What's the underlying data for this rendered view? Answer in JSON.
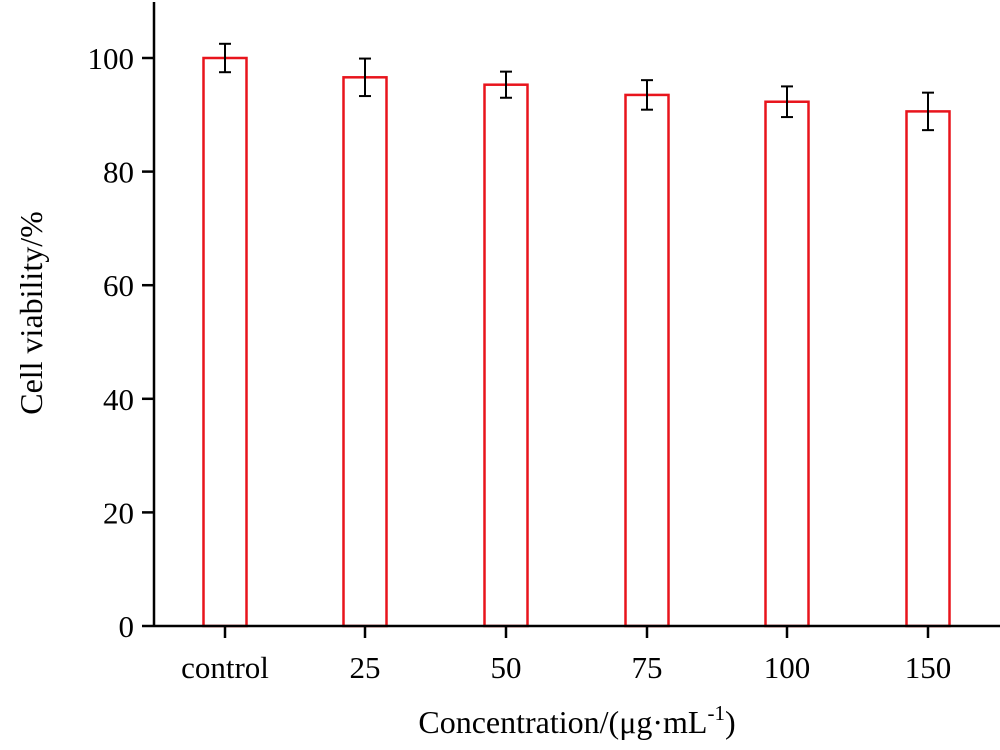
{
  "chart_data": {
    "type": "bar",
    "title": "",
    "xlabel": "Concentration/(μg·mL",
    "xlabel_superscript": "-1",
    "xlabel_suffix": ")",
    "ylabel": "Cell viability/%",
    "categories": [
      "control",
      "25",
      "50",
      "75",
      "100",
      "150"
    ],
    "values": [
      100.0,
      96.6,
      95.3,
      93.5,
      92.3,
      90.6
    ],
    "errors": [
      2.5,
      3.3,
      2.3,
      2.6,
      2.7,
      3.3
    ],
    "ylim": [
      0,
      110
    ],
    "yticks": [
      0,
      20,
      40,
      60,
      80,
      100
    ],
    "ytick_labels": [
      "0",
      "20",
      "40",
      "60",
      "80",
      "100"
    ],
    "bar_edge_color": "#e8141c",
    "bar_fill_color": "#ffffff",
    "error_bar_color": "#000000",
    "grid": false,
    "legend": false
  }
}
